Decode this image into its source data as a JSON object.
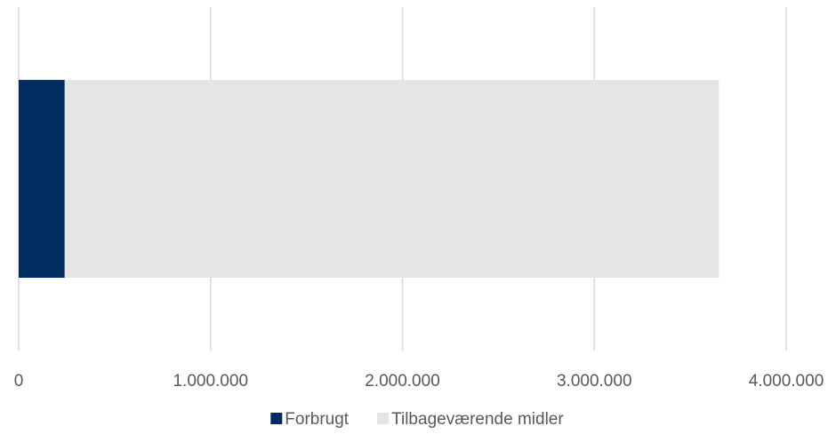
{
  "chart_data": {
    "type": "stacked_barh",
    "categories": [
      null
    ],
    "series": [
      {
        "name": "Forbrugt",
        "color": "#002d5f",
        "values": [
          240000
        ]
      },
      {
        "name": "Tilbageværende midler",
        "color": "#e5e5e5",
        "values": [
          3410000
        ]
      }
    ],
    "xlim": [
      0,
      4000000
    ],
    "xticks": [
      0,
      {
        "value": 1000000,
        "label": "1.000.000"
      },
      {
        "value": 2000000,
        "label": "2.000.000"
      },
      {
        "value": 3000000,
        "label": "3.000.000"
      },
      {
        "value": 4000000,
        "label": "4.000.000"
      }
    ],
    "grid": true,
    "legend": "bottom"
  }
}
